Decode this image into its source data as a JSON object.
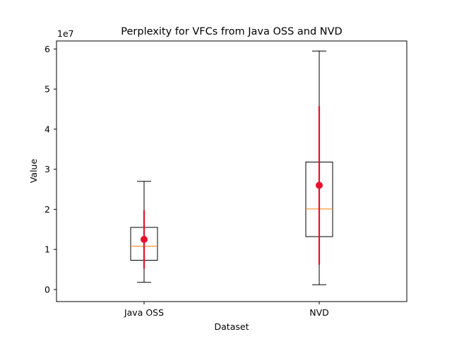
{
  "chart_data": {
    "type": "box",
    "title": "Perplexity for VFCs from Java OSS and NVD",
    "xlabel": "Dataset",
    "ylabel": "Value",
    "y_scale_label": "1e7",
    "y_scale": 10000000,
    "ylim": [
      -0.3,
      6.2
    ],
    "yticks": [
      0,
      1,
      2,
      3,
      4,
      5,
      6
    ],
    "categories": [
      "Java OSS",
      "NVD"
    ],
    "boxes": [
      {
        "name": "Java OSS",
        "whisker_low": 0.18,
        "q1": 0.73,
        "median": 1.08,
        "q3": 1.55,
        "whisker_high": 2.7,
        "mean": 1.25,
        "err_low": 0.52,
        "err_high": 1.98
      },
      {
        "name": "NVD",
        "whisker_low": 0.12,
        "q1": 1.32,
        "median": 2.01,
        "q3": 3.18,
        "whisker_high": 5.95,
        "mean": 2.6,
        "err_low": 0.62,
        "err_high": 4.58
      }
    ],
    "colors": {
      "box": "#000000",
      "median": "#ff7f0e",
      "mean": "#e8102a",
      "errorbar": "#e8102a"
    }
  }
}
